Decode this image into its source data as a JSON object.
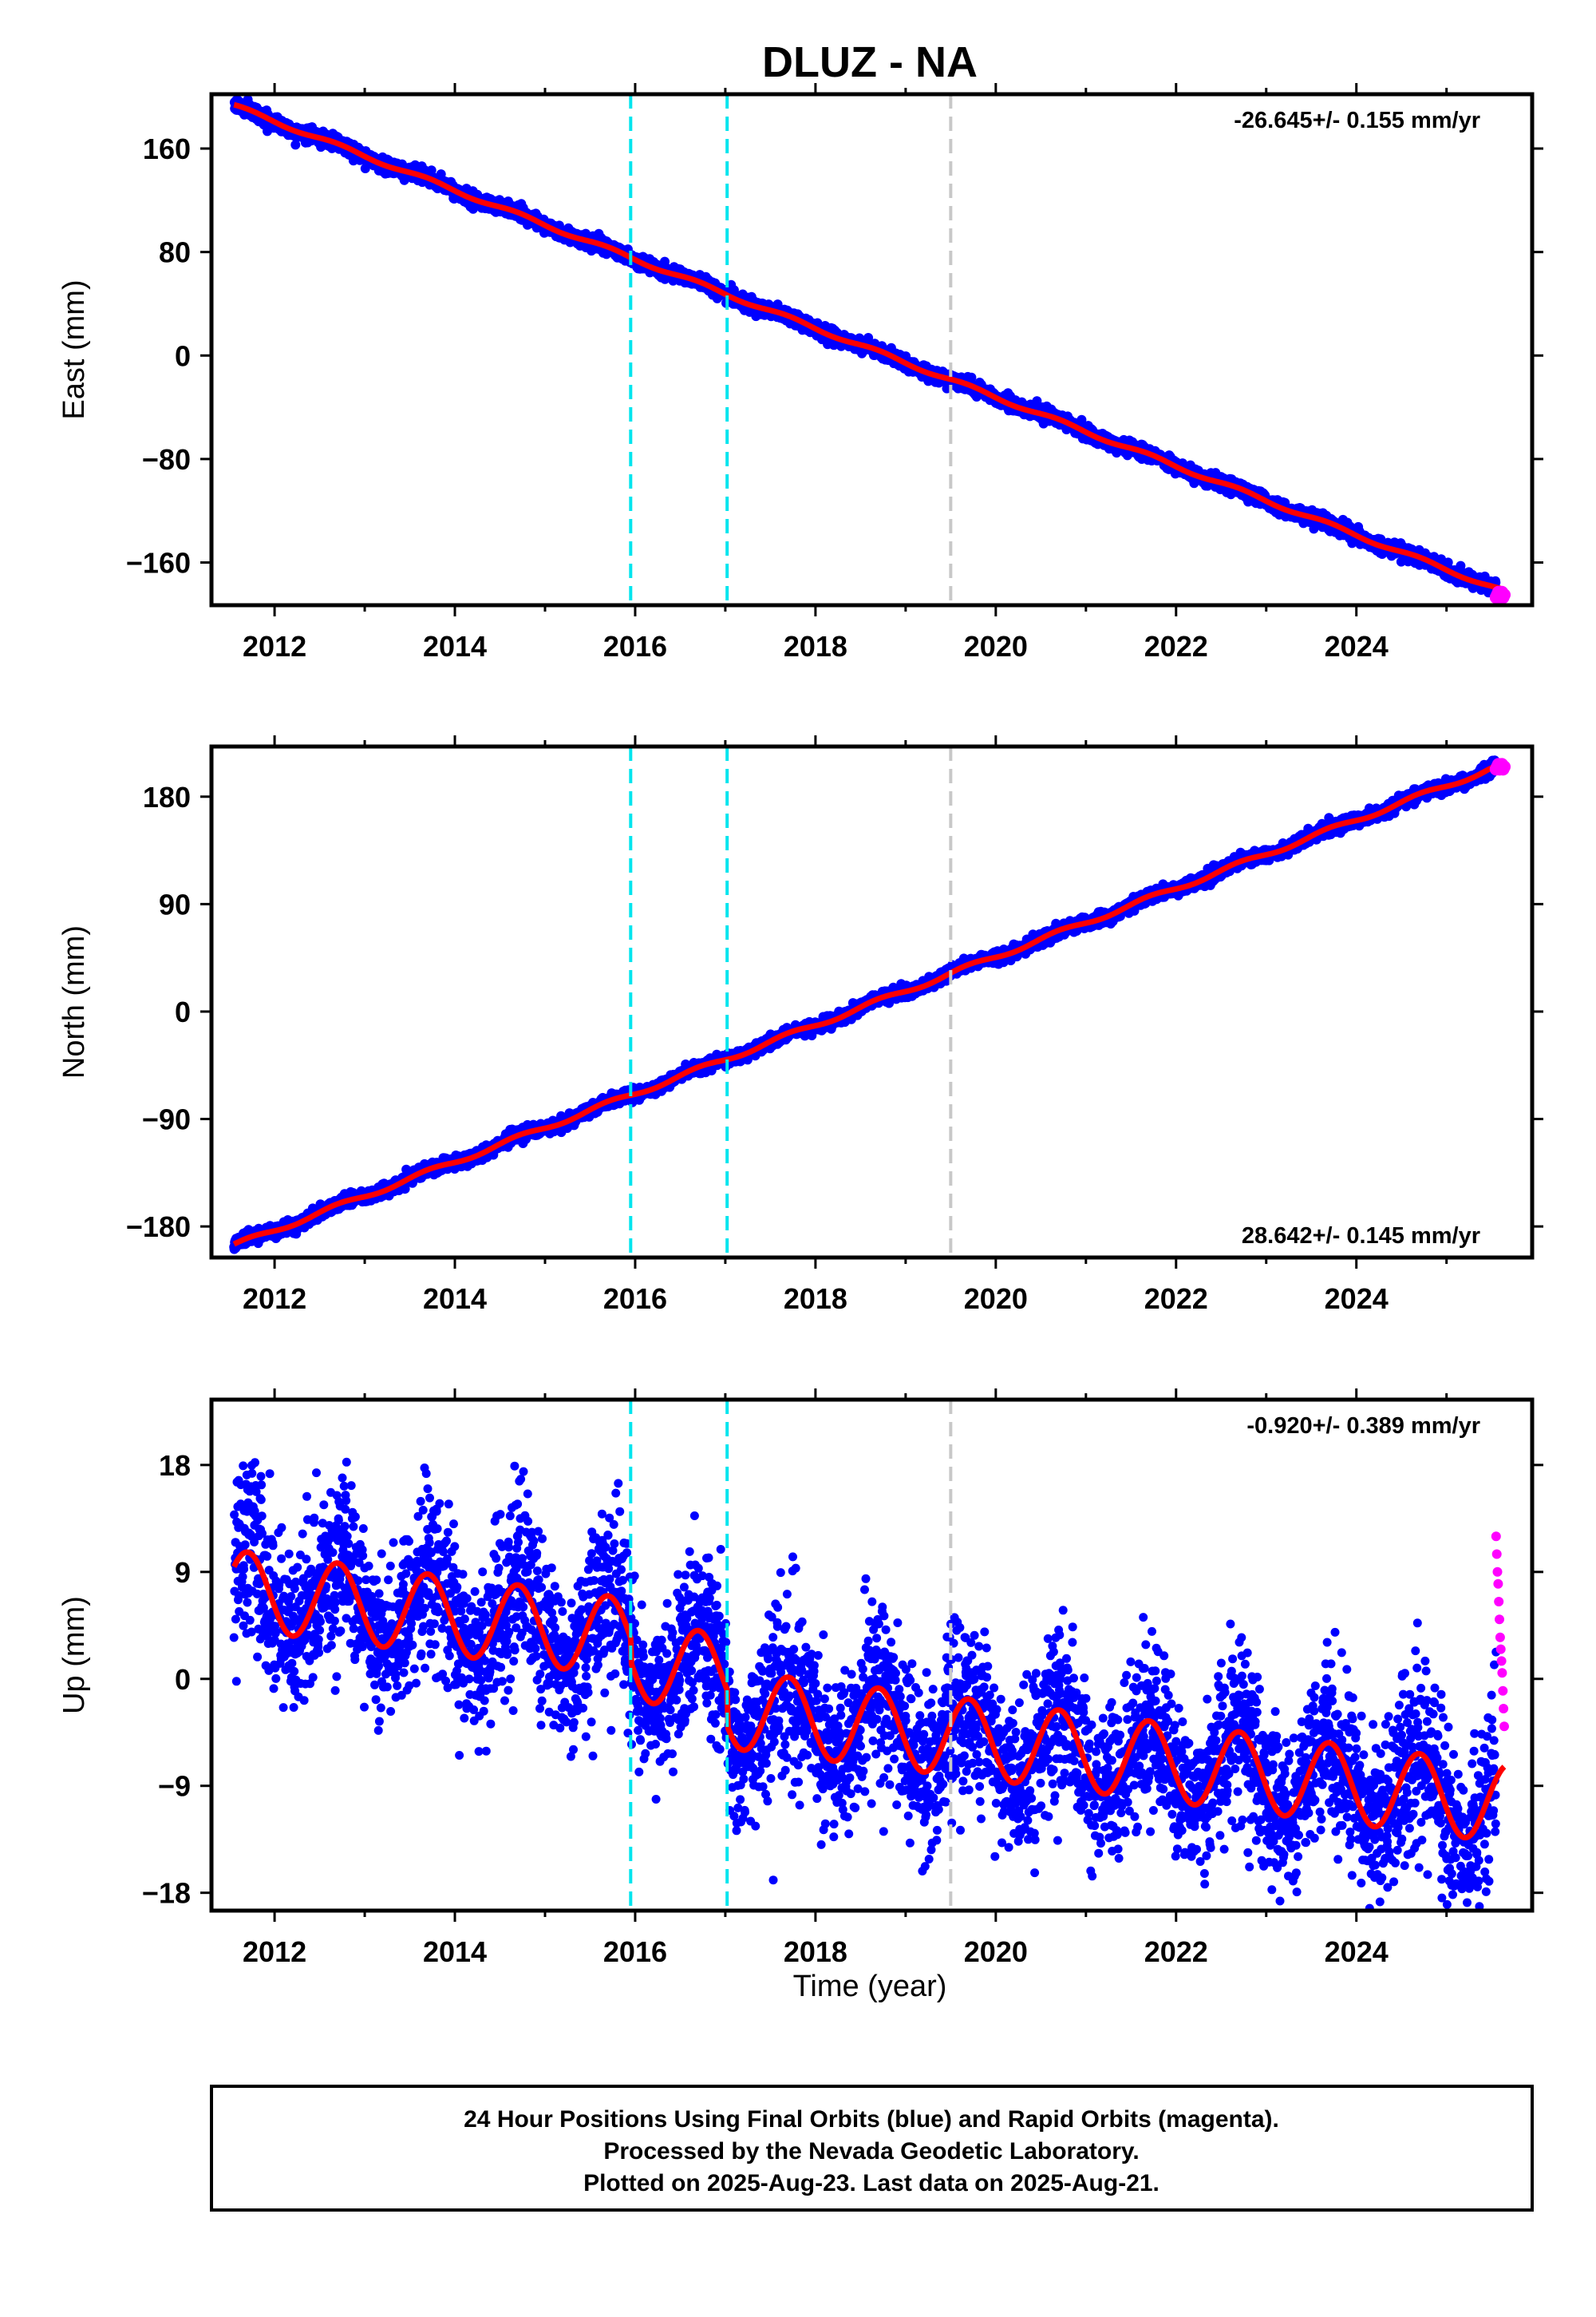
{
  "title": "DLUZ - NA",
  "xlabel": "Time (year)",
  "footer": [
    "24 Hour Positions Using Final Orbits (blue) and Rapid Orbits (magenta).",
    "Processed by the Nevada Geodetic Laboratory.",
    "Plotted on 2025-Aug-23. Last data on 2025-Aug-21."
  ],
  "colors": {
    "final_orbits": "#0000ff",
    "rapid_orbits": "#ff00ff",
    "model_fit": "#ff0000",
    "event_cyan": "#00e5ee",
    "event_gray": "#c8c8c8"
  },
  "chart_data": [
    {
      "type": "scatter",
      "title": "",
      "ylabel": "East (mm)",
      "xlim": [
        2011.3,
        2025.95
      ],
      "ylim": [
        -193,
        202
      ],
      "yticks": [
        160,
        80,
        0,
        -80,
        -160
      ],
      "xticks": [
        2012,
        2014,
        2016,
        2018,
        2020,
        2022,
        2024
      ],
      "vlines": [
        {
          "x": 2015.95,
          "color": "cyan"
        },
        {
          "x": 2017.02,
          "color": "cyan"
        },
        {
          "x": 2019.5,
          "color": "gray"
        }
      ],
      "rate_text": "-26.645+/- 0.155 mm/yr",
      "rate_position": "top-right",
      "trend": {
        "x0": 2011.55,
        "y0": 193,
        "slope": -26.645,
        "seasonal_amp": 1.5
      },
      "noise": 2.5,
      "rapid": {
        "x_start": 2025.55,
        "x_end": 2025.64,
        "y": -185
      }
    },
    {
      "type": "scatter",
      "title": "",
      "ylabel": "North (mm)",
      "xlim": [
        2011.3,
        2025.95
      ],
      "ylim": [
        -206,
        222
      ],
      "yticks": [
        180,
        90,
        0,
        -90,
        -180
      ],
      "xticks": [
        2012,
        2014,
        2016,
        2018,
        2020,
        2022,
        2024
      ],
      "vlines": [
        {
          "x": 2015.95,
          "color": "cyan"
        },
        {
          "x": 2017.02,
          "color": "cyan"
        },
        {
          "x": 2019.5,
          "color": "gray"
        }
      ],
      "rate_text": "28.642+/- 0.145 mm/yr",
      "rate_position": "bottom-right",
      "trend": {
        "x0": 2011.55,
        "y0": -196,
        "slope": 28.642,
        "seasonal_amp": 2.0
      },
      "noise": 2.5,
      "rapid": {
        "x_start": 2025.55,
        "x_end": 2025.64,
        "y": 205
      }
    },
    {
      "type": "scatter",
      "title": "",
      "ylabel": "Up (mm)",
      "xlim": [
        2011.3,
        2025.95
      ],
      "ylim": [
        -19.5,
        23.5
      ],
      "yticks": [
        18,
        9,
        0,
        -9,
        -18
      ],
      "xticks": [
        2012,
        2014,
        2016,
        2018,
        2020,
        2022,
        2024
      ],
      "vlines": [
        {
          "x": 2015.95,
          "color": "cyan"
        },
        {
          "x": 2017.02,
          "color": "cyan"
        },
        {
          "x": 2019.5,
          "color": "gray"
        }
      ],
      "rate_text": "-0.920+/- 0.389 mm/yr",
      "rate_position": "top-right",
      "trend": {
        "x0": 2011.55,
        "y0": 7.5,
        "slope": -0.92,
        "seasonal_amp": 3.3,
        "offsets": [
          {
            "x": 2015.95,
            "dy": -2.0
          },
          {
            "x": 2017.02,
            "dy": -3.0
          }
        ]
      },
      "noise": 3.3,
      "rapid": {
        "x_start": 2025.55,
        "x_end": 2025.64,
        "values": [
          12,
          10.5,
          9,
          8,
          6.5,
          5,
          3.5,
          2.5,
          1.5,
          0.5,
          -1,
          -2.5,
          -4
        ]
      }
    }
  ]
}
